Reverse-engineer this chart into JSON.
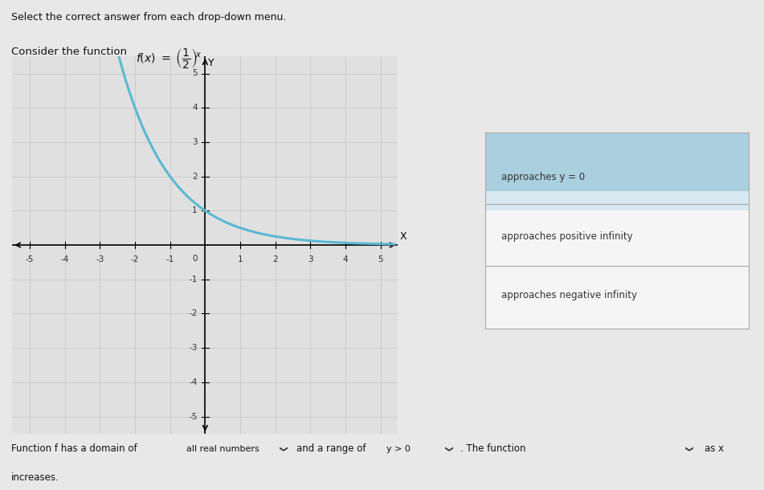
{
  "title_line1": "Select the correct answer from each drop-down menu.",
  "title_line2": "Consider the function ",
  "x_range": [
    -5.5,
    5.5
  ],
  "y_range": [
    -5.5,
    5.5
  ],
  "x_ticks": [
    -5,
    -4,
    -3,
    -2,
    -1,
    1,
    2,
    3,
    4,
    5
  ],
  "y_ticks": [
    -5,
    -4,
    -3,
    -2,
    -1,
    1,
    2,
    3,
    4,
    5
  ],
  "curve_color": "#5BB8D4",
  "curve_linewidth": 2.2,
  "grid_color": "#C8C8C8",
  "bg_color": "#E8E8E8",
  "plot_bg": "#E0E0E0",
  "dropdown1_text": "all real numbers",
  "dropdown2_text": "y > 0",
  "bottom_text1": "Function f has a domain of",
  "bottom_text2": "and a range of",
  "bottom_text3": ". The function",
  "bottom_text4": "as x",
  "bottom_text5": "increases.",
  "dropdown_options": [
    "approaches y = 0",
    "approaches positive infinity",
    "approaches negative infinity"
  ],
  "dropdown_panel_top_color": "#AACFDE",
  "dropdown_panel_mid_color": "#D5E8F0",
  "dropdown_panel_border": "#AAAAAA",
  "figsize": [
    9.51,
    6.1
  ],
  "dpi": 100
}
